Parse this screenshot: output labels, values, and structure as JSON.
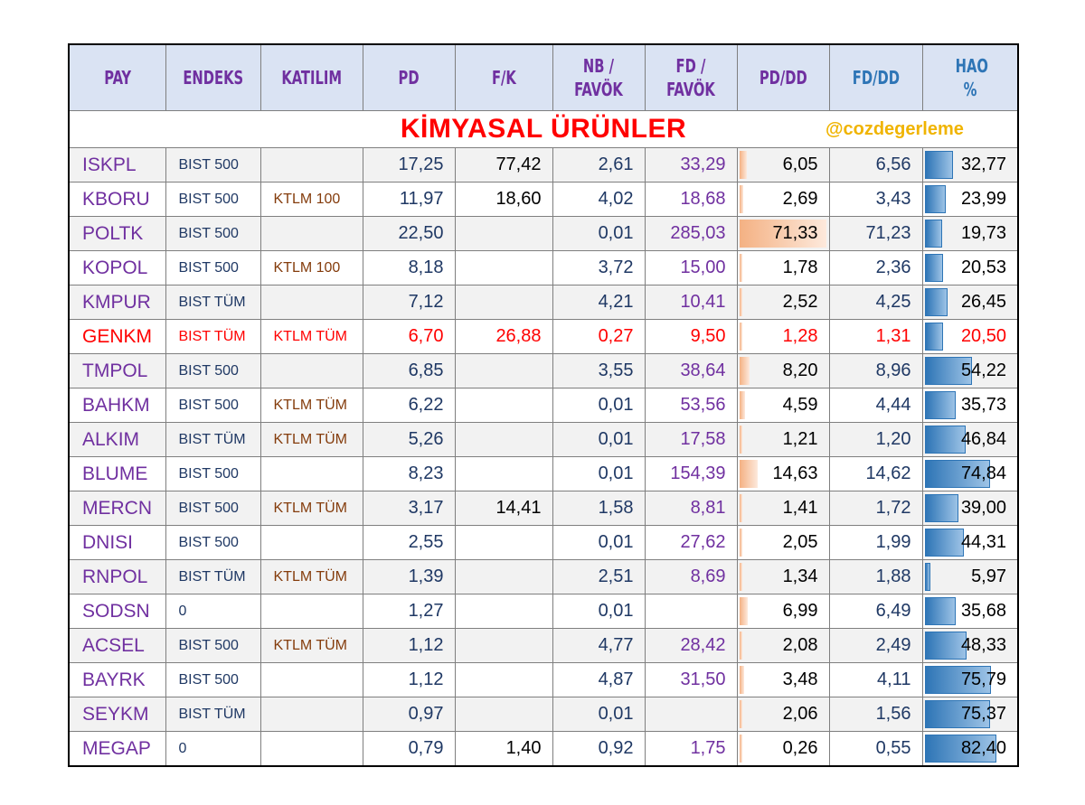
{
  "headers": [
    {
      "key": "pay",
      "label": "PAY"
    },
    {
      "key": "endeks",
      "label": "ENDEKS"
    },
    {
      "key": "katilim",
      "label": "KATILIM"
    },
    {
      "key": "pd",
      "label": "PD"
    },
    {
      "key": "fk",
      "label": "F/K"
    },
    {
      "key": "nb",
      "label": "NB / FAVÖK"
    },
    {
      "key": "fd",
      "label": "FD / FAVÖK"
    },
    {
      "key": "pddd",
      "label": "PD/DD"
    },
    {
      "key": "fddd",
      "label": "FD/DD"
    },
    {
      "key": "hao",
      "label": "HAO %"
    }
  ],
  "sector_title": "KİMYASAL ÜRÜNLER",
  "handle": "@cozdegerleme",
  "colors": {
    "header_bg": "#dae3f3",
    "ticker": "#7030a0",
    "highlight": "#ff0000",
    "pddd_bar": "#f4b183",
    "hao_bar": "#2e75b6"
  },
  "rows": [
    {
      "pay": "ISKPL",
      "endeks": "BIST 500",
      "katilim": "",
      "pd": "17,25",
      "fk": "77,42",
      "nb": "2,61",
      "fd": "33,29",
      "pddd": "6,05",
      "fddd": "6,56",
      "hao": "32,77",
      "pddd_value": 6.05,
      "hao_value": 32.77
    },
    {
      "pay": "KBORU",
      "endeks": "BIST 500",
      "katilim": "KTLM 100",
      "pd": "11,97",
      "fk": "18,60",
      "nb": "4,02",
      "fd": "18,68",
      "pddd": "2,69",
      "fddd": "3,43",
      "hao": "23,99",
      "pddd_value": 2.69,
      "hao_value": 23.99
    },
    {
      "pay": "POLTK",
      "endeks": "BIST 500",
      "katilim": "",
      "pd": "22,50",
      "fk": "",
      "nb": "0,01",
      "fd": "285,03",
      "pddd": "71,33",
      "fddd": "71,23",
      "hao": "19,73",
      "pddd_value": 71.33,
      "hao_value": 19.73
    },
    {
      "pay": "KOPOL",
      "endeks": "BIST 500",
      "katilim": "KTLM 100",
      "pd": "8,18",
      "fk": "",
      "nb": "3,72",
      "fd": "15,00",
      "pddd": "1,78",
      "fddd": "2,36",
      "hao": "20,53",
      "pddd_value": 1.78,
      "hao_value": 20.53
    },
    {
      "pay": "KMPUR",
      "endeks": "BIST TÜM",
      "katilim": "",
      "pd": "7,12",
      "fk": "",
      "nb": "4,21",
      "fd": "10,41",
      "pddd": "2,52",
      "fddd": "4,25",
      "hao": "26,45",
      "pddd_value": 2.52,
      "hao_value": 26.45
    },
    {
      "pay": "GENKM",
      "endeks": "BIST TÜM",
      "katilim": "KTLM TÜM",
      "pd": "6,70",
      "fk": "26,88",
      "nb": "0,27",
      "fd": "9,50",
      "pddd": "1,28",
      "fddd": "1,31",
      "hao": "20,50",
      "pddd_value": 1.28,
      "hao_value": 20.5,
      "highlight": true
    },
    {
      "pay": "TMPOL",
      "endeks": "BIST 500",
      "katilim": "",
      "pd": "6,85",
      "fk": "",
      "nb": "3,55",
      "fd": "38,64",
      "pddd": "8,20",
      "fddd": "8,96",
      "hao": "54,22",
      "pddd_value": 8.2,
      "hao_value": 54.22
    },
    {
      "pay": "BAHKM",
      "endeks": "BIST 500",
      "katilim": "KTLM TÜM",
      "pd": "6,22",
      "fk": "",
      "nb": "0,01",
      "fd": "53,56",
      "pddd": "4,59",
      "fddd": "4,44",
      "hao": "35,73",
      "pddd_value": 4.59,
      "hao_value": 35.73
    },
    {
      "pay": "ALKIM",
      "endeks": "BIST TÜM",
      "katilim": "KTLM TÜM",
      "pd": "5,26",
      "fk": "",
      "nb": "0,01",
      "fd": "17,58",
      "pddd": "1,21",
      "fddd": "1,20",
      "hao": "46,84",
      "pddd_value": 1.21,
      "hao_value": 46.84
    },
    {
      "pay": "BLUME",
      "endeks": "BIST 500",
      "katilim": "",
      "pd": "8,23",
      "fk": "",
      "nb": "0,01",
      "fd": "154,39",
      "pddd": "14,63",
      "fddd": "14,62",
      "hao": "74,84",
      "pddd_value": 14.63,
      "hao_value": 74.84
    },
    {
      "pay": "MERCN",
      "endeks": "BIST 500",
      "katilim": "KTLM TÜM",
      "pd": "3,17",
      "fk": "14,41",
      "nb": "1,58",
      "fd": "8,81",
      "pddd": "1,41",
      "fddd": "1,72",
      "hao": "39,00",
      "pddd_value": 1.41,
      "hao_value": 39.0
    },
    {
      "pay": "DNISI",
      "endeks": "BIST 500",
      "katilim": "",
      "pd": "2,55",
      "fk": "",
      "nb": "0,01",
      "fd": "27,62",
      "pddd": "2,05",
      "fddd": "1,99",
      "hao": "44,31",
      "pddd_value": 2.05,
      "hao_value": 44.31
    },
    {
      "pay": "RNPOL",
      "endeks": "BIST TÜM",
      "katilim": "KTLM TÜM",
      "pd": "1,39",
      "fk": "",
      "nb": "2,51",
      "fd": "8,69",
      "pddd": "1,34",
      "fddd": "1,88",
      "hao": "5,97",
      "pddd_value": 1.34,
      "hao_value": 5.97
    },
    {
      "pay": "SODSN",
      "endeks": "0",
      "katilim": "",
      "pd": "1,27",
      "fk": "",
      "nb": "0,01",
      "fd": "",
      "pddd": "6,99",
      "fddd": "6,49",
      "hao": "35,68",
      "pddd_value": 6.99,
      "hao_value": 35.68
    },
    {
      "pay": "ACSEL",
      "endeks": "BIST 500",
      "katilim": "KTLM TÜM",
      "pd": "1,12",
      "fk": "",
      "nb": "4,77",
      "fd": "28,42",
      "pddd": "2,08",
      "fddd": "2,49",
      "hao": "48,33",
      "pddd_value": 2.08,
      "hao_value": 48.33
    },
    {
      "pay": "BAYRK",
      "endeks": "BIST 500",
      "katilim": "",
      "pd": "1,12",
      "fk": "",
      "nb": "4,87",
      "fd": "31,50",
      "pddd": "3,48",
      "fddd": "4,11",
      "hao": "75,79",
      "pddd_value": 3.48,
      "hao_value": 75.79
    },
    {
      "pay": "SEYKM",
      "endeks": "BIST TÜM",
      "katilim": "",
      "pd": "0,97",
      "fk": "",
      "nb": "0,01",
      "fd": "",
      "pddd": "2,06",
      "fddd": "1,56",
      "hao": "75,37",
      "pddd_value": 2.06,
      "hao_value": 75.37
    },
    {
      "pay": "MEGAP",
      "endeks": "0",
      "katilim": "",
      "pd": "0,79",
      "fk": "1,40",
      "nb": "0,92",
      "fd": "1,75",
      "pddd": "0,26",
      "fddd": "0,55",
      "hao": "82,40",
      "pddd_value": 0.26,
      "hao_value": 82.4
    }
  ]
}
